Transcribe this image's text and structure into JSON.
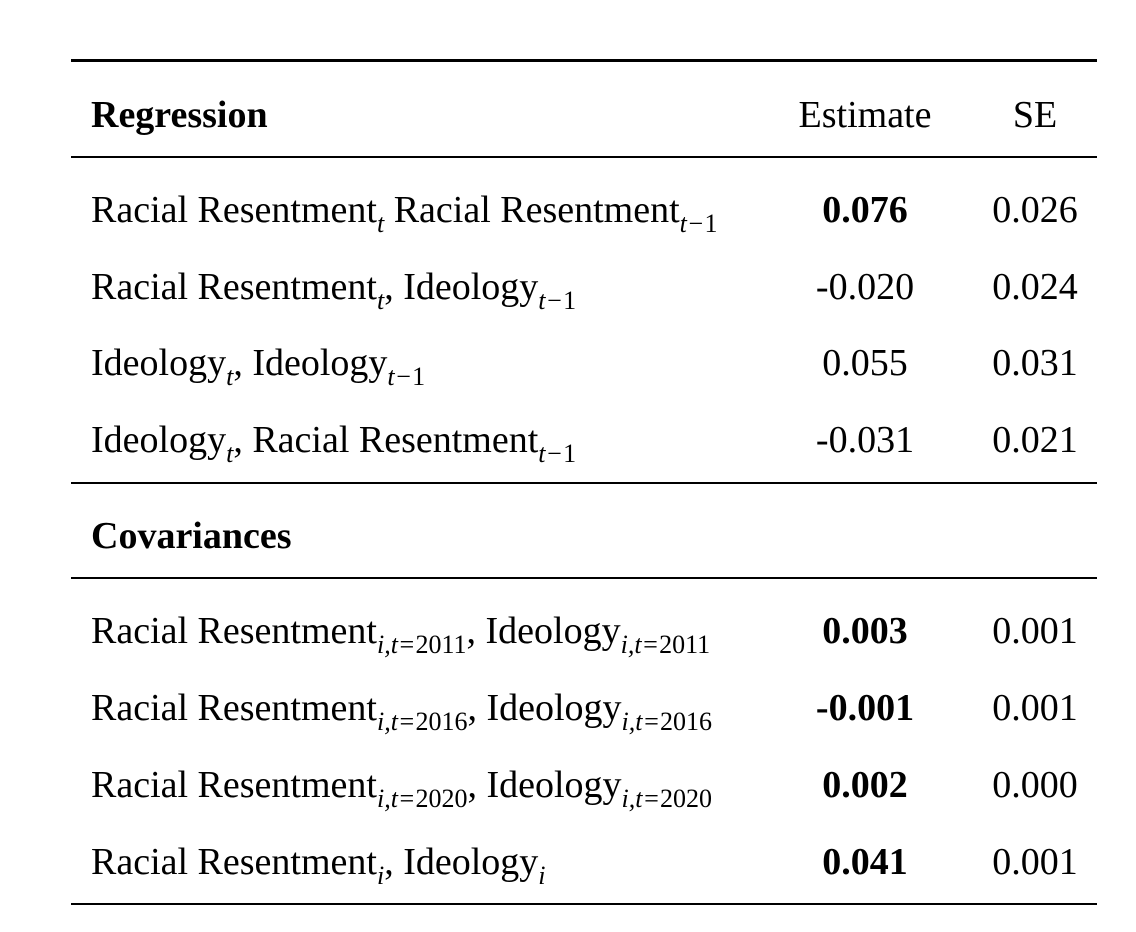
{
  "headers": {
    "section_regression": "Regression",
    "estimate": "Estimate",
    "se": "SE",
    "section_covariances": "Covariances"
  },
  "regression_rows": [
    {
      "parts": [
        {
          "text": "Racial Resentment"
        },
        {
          "sub": "t"
        },
        {
          "text": " Racial Resentment"
        },
        {
          "sub": "t−1"
        }
      ],
      "estimate": "0.076",
      "estimate_bold": true,
      "se": "0.026"
    },
    {
      "parts": [
        {
          "text": "Racial Resentment"
        },
        {
          "sub": "t"
        },
        {
          "text": ", Ideology"
        },
        {
          "sub": "t−1"
        }
      ],
      "estimate": "-0.020",
      "estimate_bold": false,
      "se": "0.024"
    },
    {
      "parts": [
        {
          "text": "Ideology"
        },
        {
          "sub": "t"
        },
        {
          "text": ", Ideology"
        },
        {
          "sub": "t−1"
        }
      ],
      "estimate": "0.055",
      "estimate_bold": false,
      "se": "0.031"
    },
    {
      "parts": [
        {
          "text": "Ideology"
        },
        {
          "sub": "t"
        },
        {
          "text": ", Racial Resentment"
        },
        {
          "sub": "t−1"
        }
      ],
      "estimate": "-0.031",
      "estimate_bold": false,
      "se": "0.021"
    }
  ],
  "covariance_rows": [
    {
      "parts": [
        {
          "text": "Racial Resentment"
        },
        {
          "sub": "i,t=2011"
        },
        {
          "text": ", Ideology"
        },
        {
          "sub": "i,t=2011"
        }
      ],
      "estimate": "0.003",
      "estimate_bold": true,
      "se": "0.001"
    },
    {
      "parts": [
        {
          "text": "Racial Resentment"
        },
        {
          "sub": "i,t=2016"
        },
        {
          "text": ", Ideology"
        },
        {
          "sub": "i,t=2016"
        }
      ],
      "estimate": "-0.001",
      "estimate_bold": true,
      "se": "0.001"
    },
    {
      "parts": [
        {
          "text": "Racial Resentment"
        },
        {
          "sub": "i,t=2020"
        },
        {
          "text": ", Ideology"
        },
        {
          "sub": "i,t=2020"
        }
      ],
      "estimate": "0.002",
      "estimate_bold": true,
      "se": "0.000"
    },
    {
      "parts": [
        {
          "text": "Racial Resentment"
        },
        {
          "sub": "i"
        },
        {
          "text": ", Ideology"
        },
        {
          "sub": "i"
        }
      ],
      "estimate": "0.041",
      "estimate_bold": true,
      "se": "0.001"
    }
  ]
}
